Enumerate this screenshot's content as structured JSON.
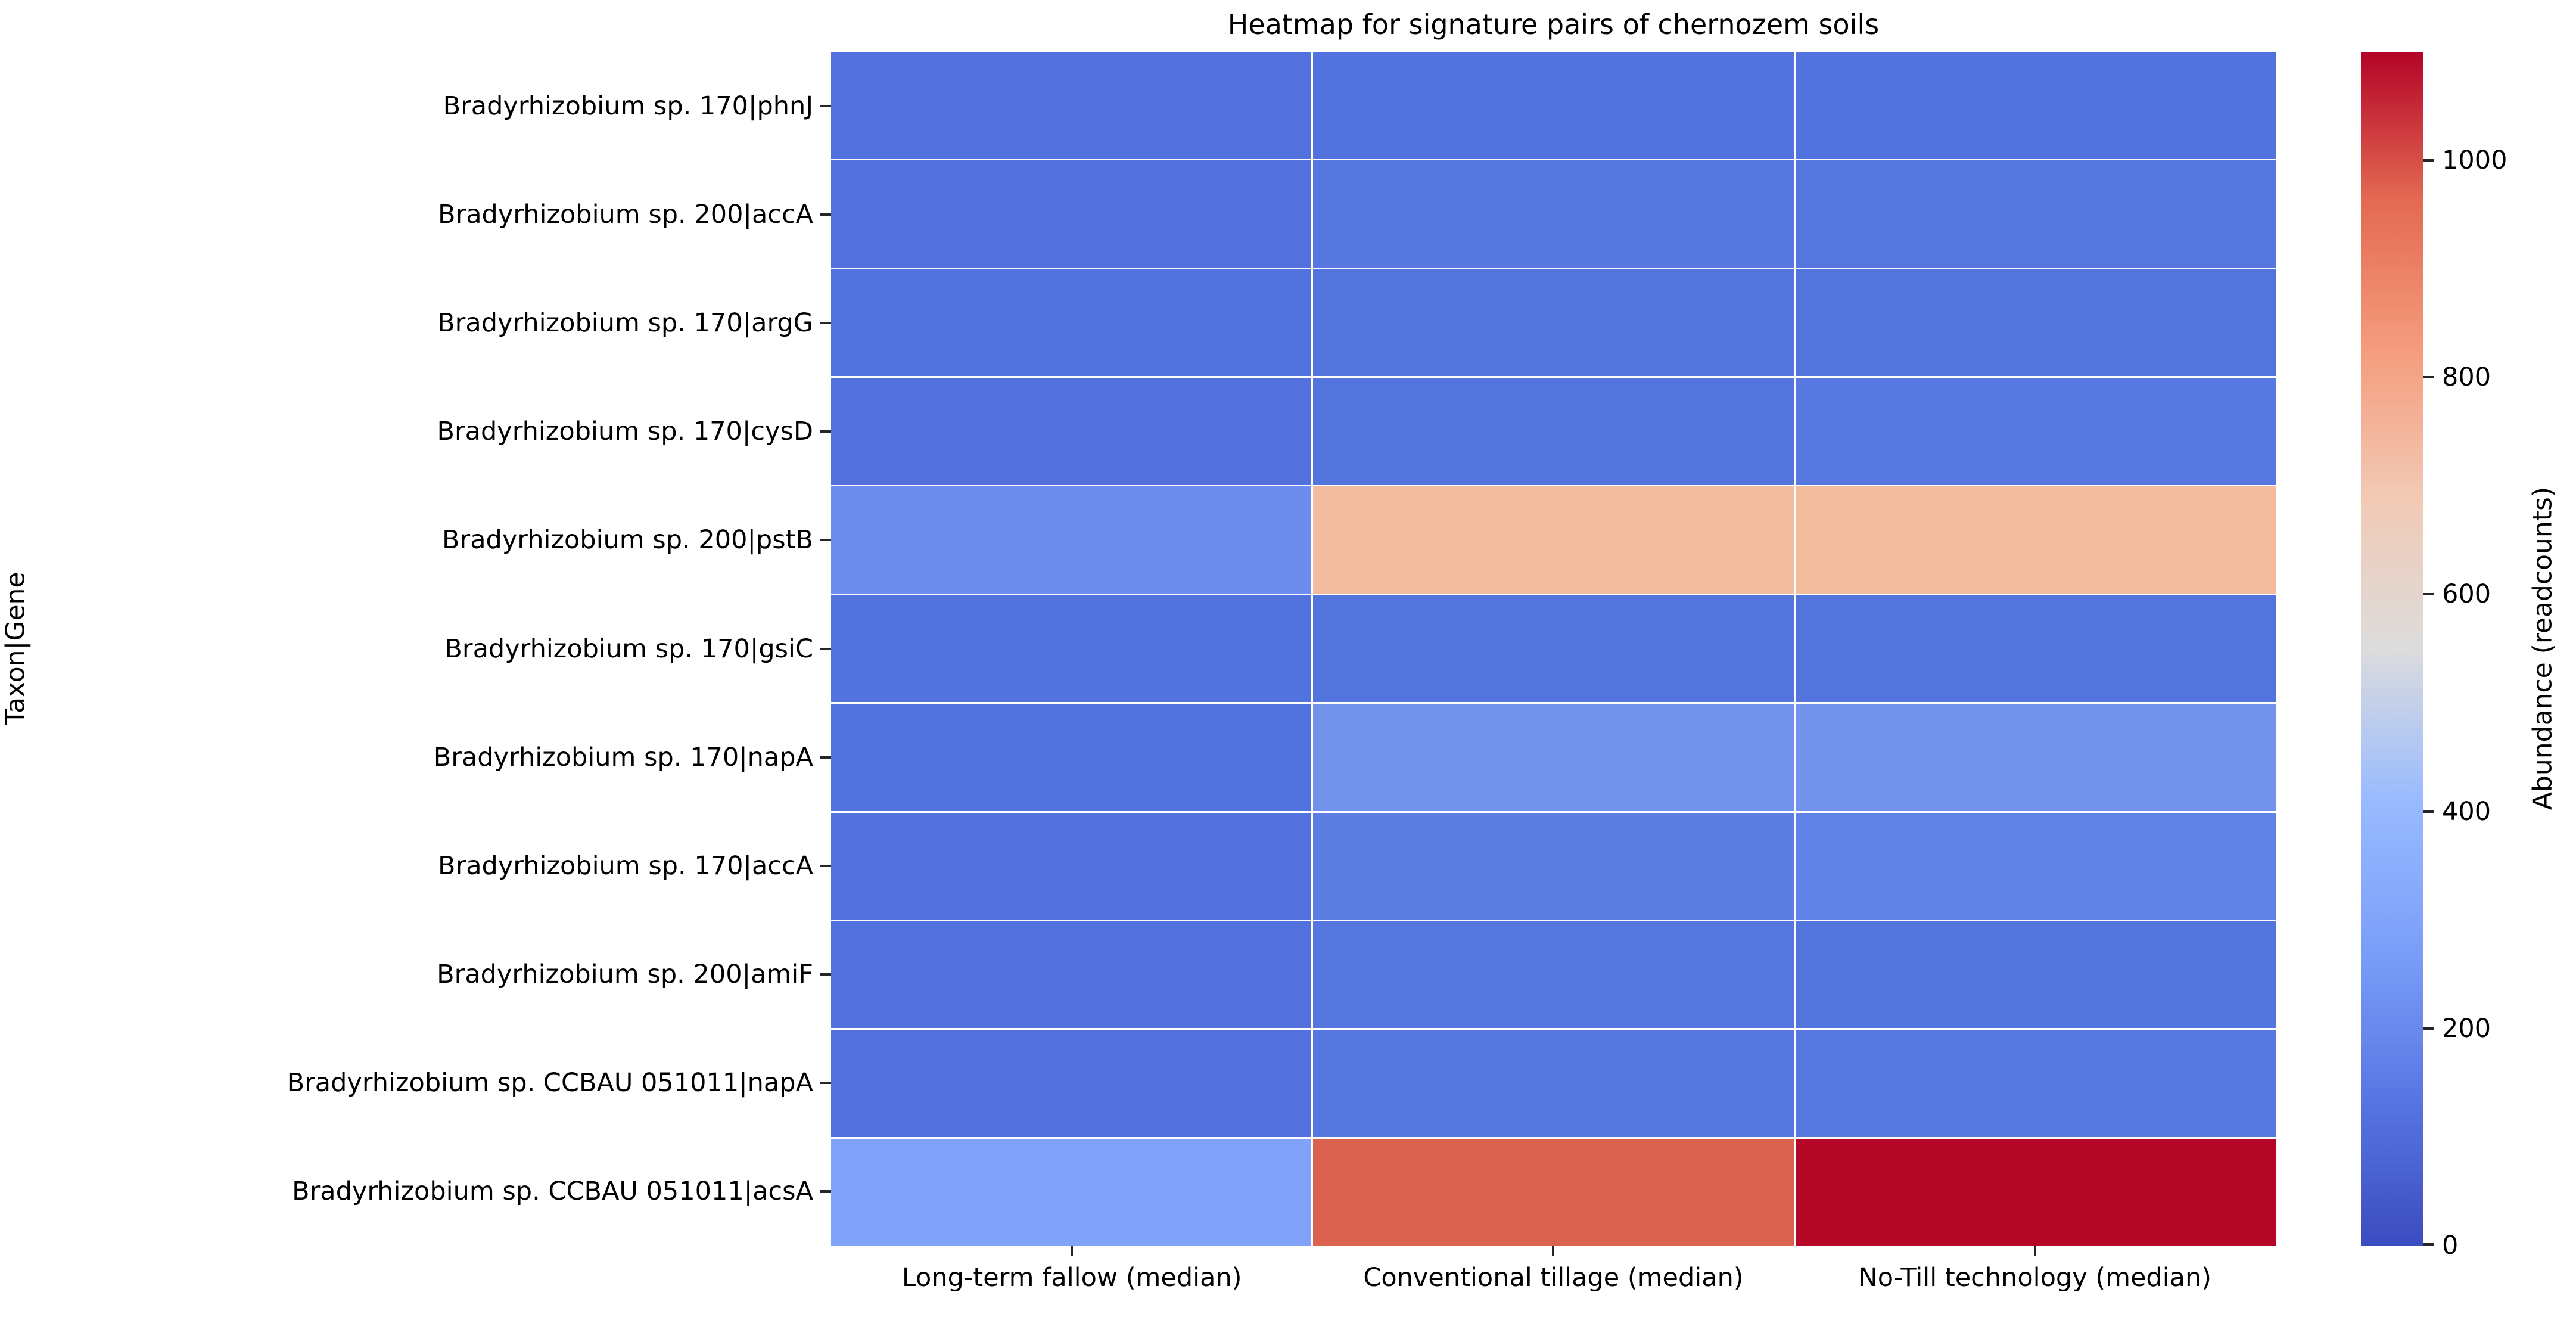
{
  "figure": {
    "background": "#ffffff",
    "text_color": "#000000",
    "grid_line_color": "#ffffff"
  },
  "chart_data": {
    "type": "heatmap",
    "title": "Heatmap for signature pairs of chernozem soils",
    "xlabel": "",
    "ylabel": "Taxon|Gene",
    "rows": [
      "Bradyrhizobium sp. 170|phnJ",
      "Bradyrhizobium sp. 200|accA",
      "Bradyrhizobium sp. 170|argG",
      "Bradyrhizobium sp. 170|cysD",
      "Bradyrhizobium sp. 200|pstB",
      "Bradyrhizobium sp. 170|gsiC",
      "Bradyrhizobium sp. 170|napA",
      "Bradyrhizobium sp. 170|accA",
      "Bradyrhizobium sp. 200|amiF",
      "Bradyrhizobium sp. CCBAU 051011|napA",
      "Bradyrhizobium sp. CCBAU 051011|acsA"
    ],
    "columns": [
      "Long-term fallow (median)",
      "Conventional tillage (median)",
      "No-Till technology (median)"
    ],
    "values": [
      [
        95,
        95,
        95
      ],
      [
        95,
        120,
        115
      ],
      [
        95,
        100,
        100
      ],
      [
        95,
        110,
        120
      ],
      [
        200,
        730,
        730
      ],
      [
        95,
        100,
        100
      ],
      [
        100,
        220,
        220
      ],
      [
        95,
        150,
        160
      ],
      [
        95,
        115,
        110
      ],
      [
        95,
        110,
        115
      ],
      [
        260,
        980,
        1100
      ]
    ],
    "cell_colors": [
      [
        "#5271dc",
        "#5272dd",
        "#5272dd"
      ],
      [
        "#5271dc",
        "#5577df",
        "#5476de"
      ],
      [
        "#5272dd",
        "#5373dd",
        "#5373dd"
      ],
      [
        "#5271dc",
        "#5475de",
        "#5778e0"
      ],
      [
        "#6e8ced",
        "#f4bc9f",
        "#f4bc9f"
      ],
      [
        "#5272dd",
        "#5373dd",
        "#5373dd"
      ],
      [
        "#5272dd",
        "#7392ec",
        "#7392ec"
      ],
      [
        "#5372dd",
        "#5c7ee3",
        "#5e82e6"
      ],
      [
        "#5271dc",
        "#5476de",
        "#5375de"
      ],
      [
        "#5271dc",
        "#5577df",
        "#5678e0"
      ],
      [
        "#80a3f9",
        "#dc6250",
        "#b40728"
      ]
    ],
    "colormap": "coolwarm",
    "vmin": 0,
    "vmax": 1100,
    "legend_position": "right",
    "grid": "white cell separators",
    "colorbar": {
      "label": "Abundance (readcounts)",
      "ticks": [
        0,
        200,
        400,
        600,
        800,
        1000
      ],
      "gradient_stops": [
        {
          "pos": 0.0,
          "color": "#3b4cc0"
        },
        {
          "pos": 0.125,
          "color": "#5977e3"
        },
        {
          "pos": 0.25,
          "color": "#7b9ff9"
        },
        {
          "pos": 0.375,
          "color": "#9abbff"
        },
        {
          "pos": 0.5,
          "color": "#dcdcdc"
        },
        {
          "pos": 0.625,
          "color": "#f2cab5"
        },
        {
          "pos": 0.75,
          "color": "#f59c7d"
        },
        {
          "pos": 0.875,
          "color": "#e36a53"
        },
        {
          "pos": 1.0,
          "color": "#b40426"
        }
      ]
    }
  }
}
